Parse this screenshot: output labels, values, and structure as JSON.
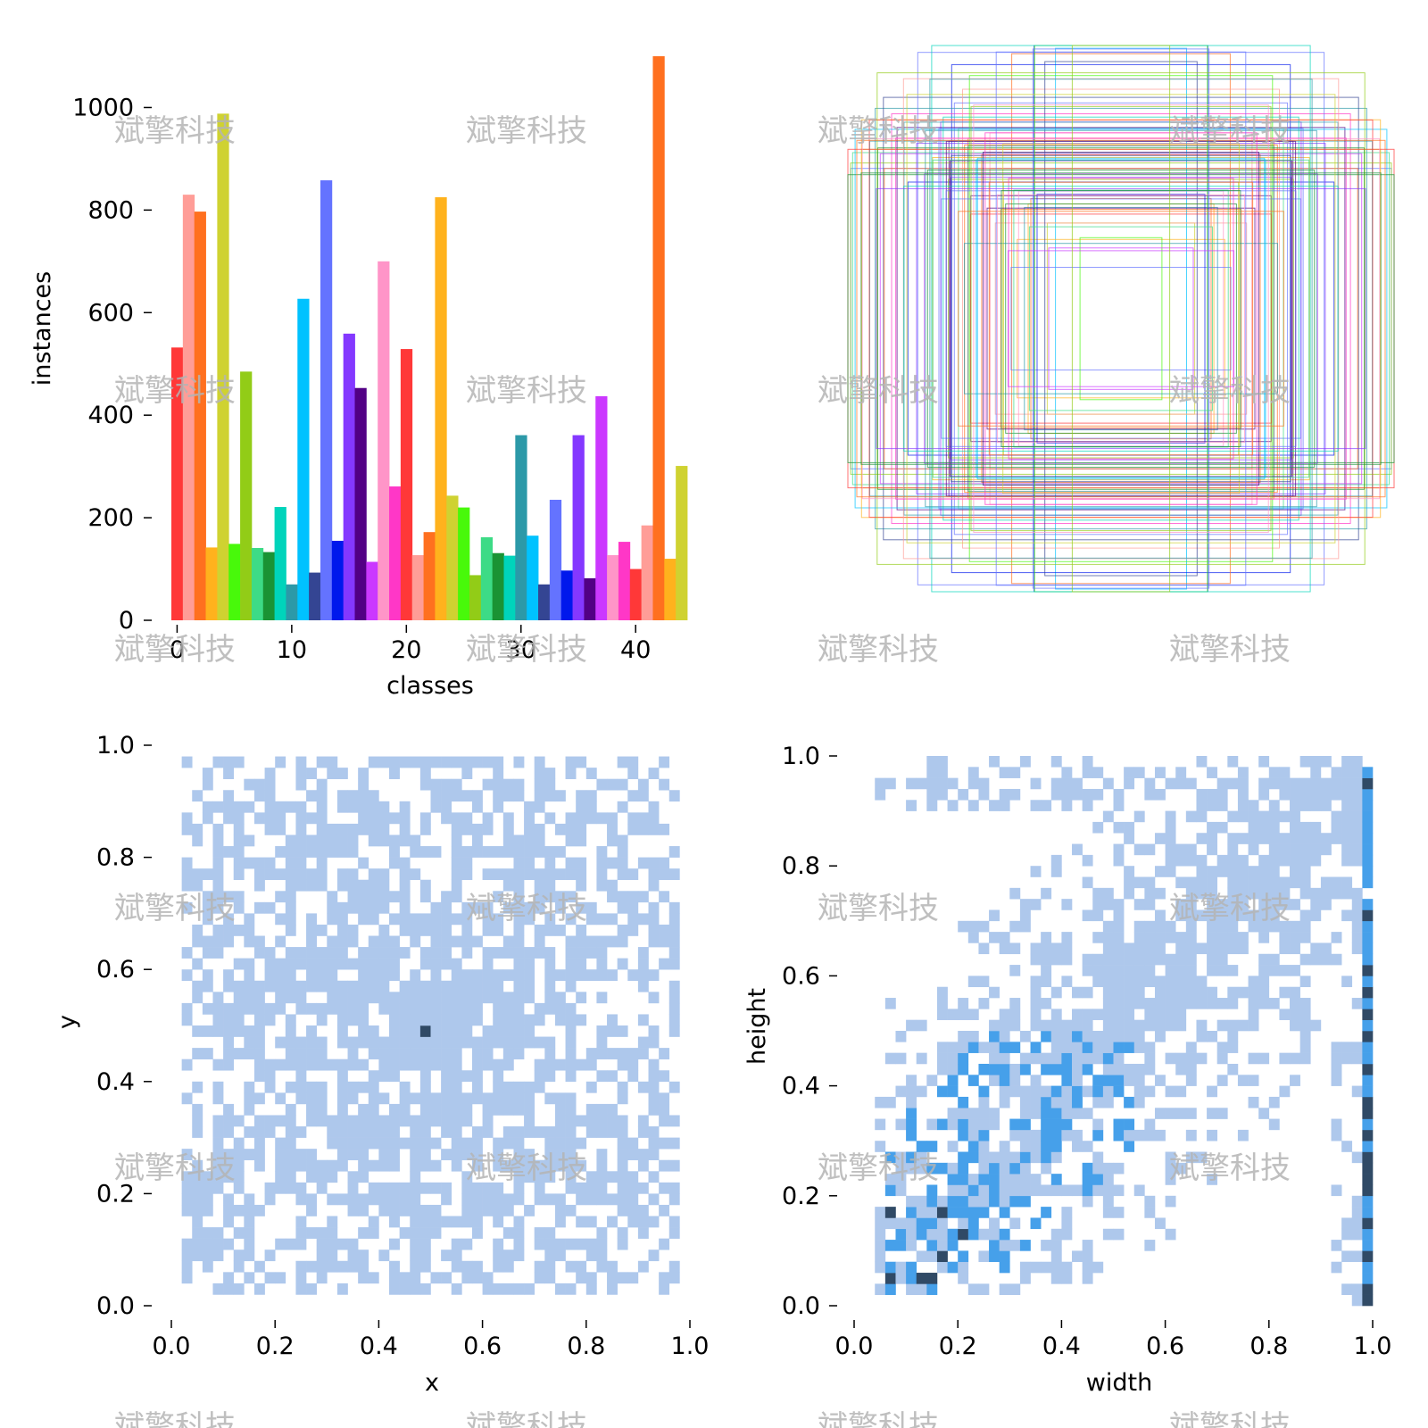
{
  "watermark": "斌擎科技",
  "colors": {
    "hist_light": "#aec8ec",
    "hist_mid": "#46a0ea",
    "hist_dark": "#304a66",
    "box_palette": [
      "#ff3838",
      "#ff9d97",
      "#ff701f",
      "#ffb21d",
      "#cfd231",
      "#48f90a",
      "#92cc17",
      "#3ddb86",
      "#1a9334",
      "#00d4bb",
      "#2c99a8",
      "#00c2ff",
      "#344593",
      "#6473ff",
      "#0018ec",
      "#8438ff",
      "#520085",
      "#cb38ff",
      "#ff95c8",
      "#ff37c7"
    ]
  },
  "chart_data": [
    {
      "id": "class-histogram",
      "type": "bar",
      "xlabel": "classes",
      "ylabel": "instances",
      "x": [
        0,
        1,
        2,
        3,
        4,
        5,
        6,
        7,
        8,
        9,
        10,
        11,
        12,
        13,
        14,
        15,
        16,
        17,
        18,
        19,
        20,
        21,
        22,
        23,
        24,
        25,
        26,
        27,
        28,
        29,
        30,
        31,
        32,
        33,
        34,
        35,
        36,
        37,
        38,
        39,
        40,
        41,
        42,
        43,
        44
      ],
      "values": [
        532,
        830,
        797,
        142,
        988,
        149,
        485,
        141,
        133,
        221,
        70,
        627,
        93,
        858,
        155,
        559,
        453,
        114,
        700,
        261,
        529,
        127,
        172,
        825,
        243,
        220,
        88,
        162,
        131,
        126,
        361,
        165,
        70,
        235,
        97,
        361,
        82,
        437,
        127,
        153,
        100,
        185,
        1100,
        120,
        301
      ],
      "xticks": [
        "0",
        "10",
        "20",
        "30",
        "40"
      ],
      "xtick_values": [
        0,
        10,
        20,
        30,
        40
      ],
      "yticks": [
        "0",
        "200",
        "400",
        "600",
        "800",
        "1000"
      ],
      "ytick_values": [
        0,
        200,
        400,
        600,
        800,
        1000
      ],
      "ylim": [
        0,
        1100
      ],
      "xlim": [
        -0.5,
        44.5
      ]
    },
    {
      "id": "box-overlay",
      "type": "scatter",
      "description_kind": "centered bounding boxes (first 100 labels), width/height in normalized units",
      "boxes": [
        {
          "w": 0.24,
          "h": 0.99,
          "c": 11
        },
        {
          "w": 0.62,
          "h": 0.93,
          "c": 14
        },
        {
          "w": 0.4,
          "h": 0.97,
          "c": 2
        },
        {
          "w": 0.55,
          "h": 0.45,
          "c": 16
        },
        {
          "w": 0.9,
          "h": 0.77,
          "c": 10
        },
        {
          "w": 0.69,
          "h": 0.59,
          "c": 3
        },
        {
          "w": 0.48,
          "h": 0.55,
          "c": 2
        },
        {
          "w": 0.99,
          "h": 0.55,
          "c": 13
        },
        {
          "w": 0.43,
          "h": 0.5,
          "c": 4
        },
        {
          "w": 0.33,
          "h": 0.44,
          "c": 2
        },
        {
          "w": 0.87,
          "h": 0.81,
          "c": 12
        },
        {
          "w": 0.84,
          "h": 0.75,
          "c": 19
        },
        {
          "w": 0.63,
          "h": 0.65,
          "c": 16
        },
        {
          "w": 0.95,
          "h": 0.62,
          "c": 4
        },
        {
          "w": 0.48,
          "h": 0.68,
          "c": 18
        },
        {
          "w": 0.78,
          "h": 0.5,
          "c": 14
        },
        {
          "w": 0.38,
          "h": 0.29,
          "c": 3
        },
        {
          "w": 0.58,
          "h": 0.84,
          "c": 1
        },
        {
          "w": 0.92,
          "h": 0.65,
          "c": 10
        },
        {
          "w": 0.44,
          "h": 0.4,
          "c": 2
        },
        {
          "w": 0.72,
          "h": 0.53,
          "c": 17
        },
        {
          "w": 0.27,
          "h": 0.35,
          "c": 4
        },
        {
          "w": 0.66,
          "h": 0.72,
          "c": 15
        },
        {
          "w": 0.51,
          "h": 0.6,
          "c": 2
        },
        {
          "w": 0.99,
          "h": 0.57,
          "c": 6
        },
        {
          "w": 0.34,
          "h": 0.42,
          "c": 3
        },
        {
          "w": 0.61,
          "h": 0.79,
          "c": 13
        },
        {
          "w": 0.46,
          "h": 0.35,
          "c": 1
        },
        {
          "w": 0.82,
          "h": 0.7,
          "c": 16
        },
        {
          "w": 0.56,
          "h": 0.66,
          "c": 2
        }
      ]
    },
    {
      "id": "xy-histogram",
      "type": "heatmap",
      "xlabel": "x",
      "ylabel": "y",
      "xlim": [
        0,
        1
      ],
      "ylim": [
        0,
        1
      ],
      "bins": 50,
      "xticks": [
        "0.0",
        "0.2",
        "0.4",
        "0.6",
        "0.8",
        "1.0"
      ],
      "yticks": [
        "0.0",
        "0.2",
        "0.4",
        "0.6",
        "0.8",
        "1.0"
      ],
      "tick_values": [
        0,
        0.2,
        0.4,
        0.6,
        0.8,
        1.0
      ],
      "peak": {
        "x": 0.49,
        "y": 0.49
      }
    },
    {
      "id": "wh-histogram",
      "type": "heatmap",
      "xlabel": "width",
      "ylabel": "height",
      "xlim": [
        0,
        1
      ],
      "ylim": [
        0,
        1
      ],
      "bins": 50,
      "xticks": [
        "0.0",
        "0.2",
        "0.4",
        "0.6",
        "0.8",
        "1.0"
      ],
      "yticks": [
        "0.0",
        "0.2",
        "0.4",
        "0.6",
        "0.8",
        "1.0"
      ],
      "tick_values": [
        0,
        0.2,
        0.4,
        0.6,
        0.8,
        1.0
      ]
    }
  ]
}
